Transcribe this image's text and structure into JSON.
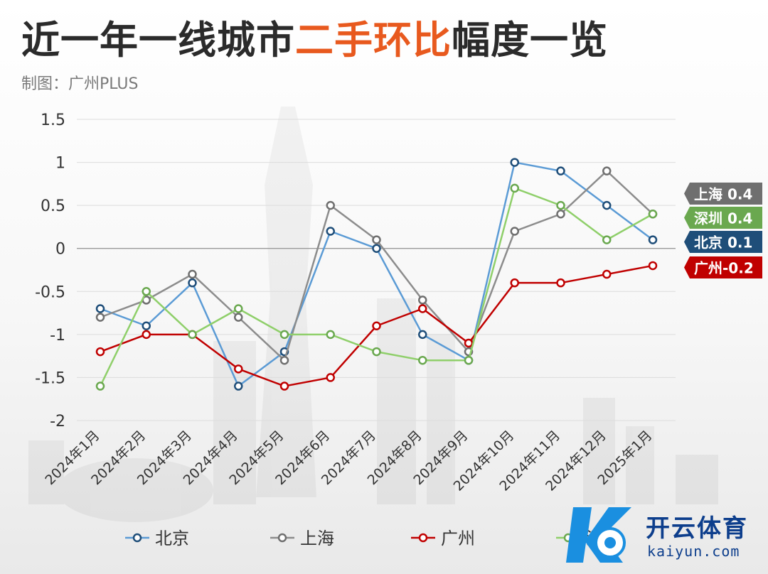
{
  "header": {
    "title_pre": "近一年一线城市",
    "title_highlight": "二手环比",
    "title_post": "幅度一览",
    "credit": "制图：广州PLUS"
  },
  "chart_data": {
    "type": "line",
    "categories": [
      "2024年1月",
      "2024年2月",
      "2024年3月",
      "2024年4月",
      "2024年5月",
      "2024年6月",
      "2024年7月",
      "2024年8月",
      "2024年9月",
      "2024年10月",
      "2024年11月",
      "2024年12月",
      "2025年1月"
    ],
    "ylim": [
      -2,
      1.5
    ],
    "yticks": [
      1.5,
      1,
      0.5,
      0,
      -0.5,
      -1,
      -1.5,
      -2
    ],
    "ytick_labels": [
      "1.5",
      "1",
      "0.5",
      "0",
      "-0.5",
      "-1",
      "-1.5",
      "-2"
    ],
    "grid": true,
    "legend_position": "bottom",
    "series": [
      {
        "name": "北京",
        "color": "#5b9bd5",
        "marker": "#1f4e79",
        "values": [
          -0.7,
          -0.9,
          -0.4,
          -1.6,
          -1.2,
          0.2,
          0.0,
          -1.0,
          -1.3,
          1.0,
          0.9,
          0.5,
          0.1
        ]
      },
      {
        "name": "上海",
        "color": "#8c8c8c",
        "marker": "#6f6f6f",
        "values": [
          -0.8,
          -0.6,
          -0.3,
          -0.8,
          -1.3,
          0.5,
          0.1,
          -0.6,
          -1.2,
          0.2,
          0.4,
          0.9,
          0.4
        ]
      },
      {
        "name": "广州",
        "color": "#c00000",
        "marker": "#c00000",
        "values": [
          -1.2,
          -1.0,
          -1.0,
          -1.4,
          -1.6,
          -1.5,
          -0.9,
          -0.7,
          -1.1,
          -0.4,
          -0.4,
          -0.3,
          -0.2
        ]
      },
      {
        "name": "深圳",
        "color": "#8fcf6a",
        "marker": "#6aa84f",
        "values": [
          -1.6,
          -0.5,
          -1.0,
          -0.7,
          -1.0,
          -1.0,
          -1.2,
          -1.3,
          -1.3,
          0.7,
          0.5,
          0.1,
          0.4
        ]
      }
    ],
    "end_tags": [
      {
        "text": "上海 0.4",
        "color": "#6f6f6f"
      },
      {
        "text": "深圳 0.4",
        "color": "#6aa84f"
      },
      {
        "text": "北京 0.1",
        "color": "#1f4e79"
      },
      {
        "text": "广州-0.2",
        "color": "#c00000"
      }
    ]
  },
  "watermark": {
    "name": "开云体育",
    "url": "kaiyun.com"
  }
}
